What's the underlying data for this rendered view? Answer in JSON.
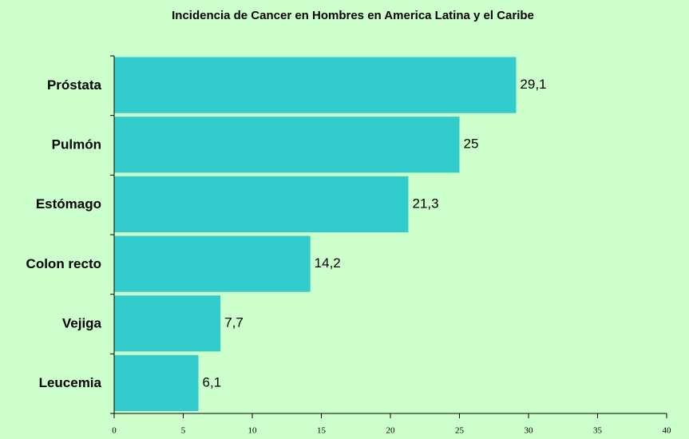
{
  "chart_data": {
    "type": "barh",
    "title": "Incidencia de Cancer en Hombres en America Latina y el Caribe",
    "categories": [
      "Próstata",
      "Pulmón",
      "Estómago",
      "Colon recto",
      "Vejiga",
      "Leucemia"
    ],
    "values": [
      29.1,
      25,
      21.3,
      14.2,
      7.7,
      6.1
    ],
    "value_labels": [
      "29,1",
      "25",
      "21,3",
      "14,2",
      "7,7",
      "6,1"
    ],
    "color": "#33cccc",
    "xlim": [
      0,
      40
    ],
    "xticks": [
      0,
      5,
      10,
      15,
      20,
      25,
      30,
      35,
      40
    ]
  }
}
